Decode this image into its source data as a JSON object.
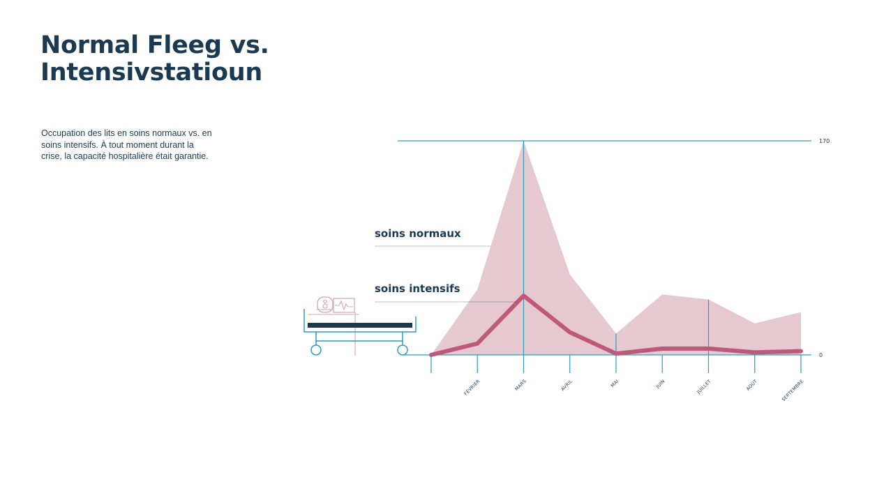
{
  "page": {
    "title_lines": [
      "Normal Fleeg vs.",
      "Intensivstatioun"
    ],
    "subtitle": "Occupation des lits en soins normaux vs. en soins intensifs. À tout moment durant la crise, la capacité hospitalière était garantie."
  },
  "colors": {
    "accent_blue": "#2c9bc7",
    "normal_fill": "#e6c8d1",
    "intensive_line": "#bc5a78",
    "dark_navy": "#1b3a52",
    "bed_pink": "#d7a3b2"
  },
  "icons": [
    "hospital-bed-icon",
    "heart-monitor-icon"
  ],
  "chart_data": {
    "type": "area",
    "categories": [
      "",
      "FÉVRIER",
      "MARS",
      "AVRIL",
      "MAI",
      "JUIN",
      "JUILLET",
      "AOÛT",
      "SEPTEMBRE"
    ],
    "series": [
      {
        "name": "soins normaux",
        "type": "area",
        "values": [
          0,
          52,
          170,
          64,
          17,
          48,
          44,
          25,
          34
        ]
      },
      {
        "name": "soins intensifs",
        "type": "line",
        "values": [
          0,
          9,
          47,
          18,
          1,
          5,
          5,
          2,
          3
        ]
      }
    ],
    "ylim": [
      0,
      170
    ],
    "y_tick_labels": [
      "0",
      "170"
    ],
    "emphasized_categories": [
      "MARS",
      "MAI",
      "JUILLET"
    ],
    "grid": false
  }
}
